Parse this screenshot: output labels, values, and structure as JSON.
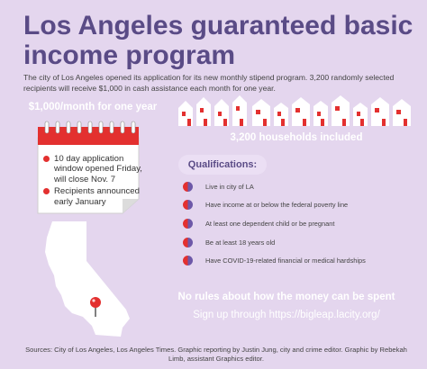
{
  "title": "Los Angeles guaranteed basic income program",
  "intro": "The city of Los Angeles opened its application for its new monthly stipend program. 3,200 randomly selected recipients will receive $1,000 in cash assistance each month for one year.",
  "calendar": {
    "heading": "$1,000/month for one year",
    "bullets": [
      "10 day application window opened Friday, will close Nov. 7",
      "Recipients announced early January"
    ]
  },
  "households": {
    "caption": "3,200 households included"
  },
  "qualifications": {
    "heading": "Qualifications:",
    "items": [
      "Live in city of LA",
      "Have income at or below the federal poverty line",
      "At least one dependent child or be pregnant",
      "Be at least 18 years old",
      "Have COVID-19-related financial or medical hardships"
    ]
  },
  "footer": {
    "no_rules": "No rules about how the money can be spent",
    "signup": "Sign up through https://bigleap.lacity.org/",
    "sources": "Sources: City of Los Angeles, Los Angeles Times. Graphic reporting by Justin Jung, city and crime editor. Graphic by Rebekah Limb, assistant Graphics editor."
  },
  "colors": {
    "background": "#e4d6ee",
    "title": "#5a4b86",
    "accent_red": "#e3302f",
    "accent_purple": "#6d58a8"
  },
  "icons": [
    "calendar-icon",
    "house-icon",
    "california-map-icon",
    "map-pin-icon"
  ]
}
